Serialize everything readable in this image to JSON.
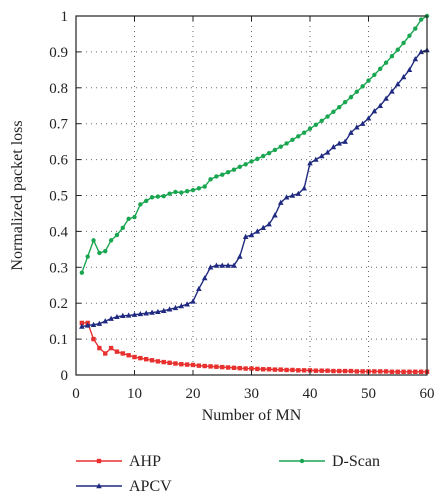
{
  "chart_data": {
    "type": "line",
    "xlabel": "Number of MN",
    "ylabel": "Normalized packet loss",
    "xlim": [
      0,
      60
    ],
    "ylim": [
      0,
      1
    ],
    "x_ticks": [
      0,
      10,
      20,
      30,
      40,
      50,
      60
    ],
    "y_ticks": [
      0,
      0.1,
      0.2,
      0.3,
      0.4,
      0.5,
      0.6,
      0.7,
      0.8,
      0.9,
      1
    ],
    "y_tick_labels": [
      "0",
      "0.1",
      "0.2",
      "0.3",
      "0.4",
      "0.5",
      "0.6",
      "0.7",
      "0.8",
      "0.9",
      "1"
    ],
    "grid": "dotted",
    "legend_placement": "below",
    "x": [
      1,
      2,
      3,
      4,
      5,
      6,
      7,
      8,
      9,
      10,
      11,
      12,
      13,
      14,
      15,
      16,
      17,
      18,
      19,
      20,
      21,
      22,
      23,
      24,
      25,
      26,
      27,
      28,
      29,
      30,
      31,
      32,
      33,
      34,
      35,
      36,
      37,
      38,
      39,
      40,
      41,
      42,
      43,
      44,
      45,
      46,
      47,
      48,
      49,
      50,
      51,
      52,
      53,
      54,
      55,
      56,
      57,
      58,
      59,
      60
    ],
    "series": [
      {
        "name": "AHP",
        "color": "#e8312f",
        "marker": "square",
        "values": [
          0.145,
          0.145,
          0.1,
          0.075,
          0.06,
          0.075,
          0.065,
          0.06,
          0.055,
          0.05,
          0.047,
          0.044,
          0.041,
          0.038,
          0.036,
          0.034,
          0.032,
          0.03,
          0.029,
          0.028,
          0.026,
          0.025,
          0.024,
          0.023,
          0.022,
          0.021,
          0.02,
          0.019,
          0.018,
          0.018,
          0.017,
          0.016,
          0.016,
          0.015,
          0.015,
          0.014,
          0.014,
          0.013,
          0.013,
          0.013,
          0.012,
          0.012,
          0.012,
          0.011,
          0.011,
          0.011,
          0.011,
          0.01,
          0.01,
          0.01,
          0.01,
          0.01,
          0.01,
          0.009,
          0.009,
          0.009,
          0.009,
          0.009,
          0.009,
          0.009
        ]
      },
      {
        "name": "APCV",
        "color": "#1f2a80",
        "marker": "triangle",
        "values": [
          0.135,
          0.138,
          0.14,
          0.143,
          0.15,
          0.157,
          0.162,
          0.165,
          0.166,
          0.168,
          0.17,
          0.172,
          0.174,
          0.176,
          0.179,
          0.183,
          0.187,
          0.192,
          0.197,
          0.205,
          0.24,
          0.27,
          0.3,
          0.305,
          0.305,
          0.305,
          0.305,
          0.33,
          0.385,
          0.39,
          0.4,
          0.41,
          0.42,
          0.445,
          0.48,
          0.495,
          0.5,
          0.505,
          0.52,
          0.59,
          0.6,
          0.61,
          0.62,
          0.635,
          0.645,
          0.65,
          0.675,
          0.69,
          0.7,
          0.715,
          0.735,
          0.75,
          0.77,
          0.79,
          0.81,
          0.83,
          0.85,
          0.88,
          0.9,
          0.905
        ]
      },
      {
        "name": "D-Scan",
        "color": "#1aa650",
        "marker": "circle",
        "values": [
          0.285,
          0.33,
          0.375,
          0.34,
          0.345,
          0.375,
          0.39,
          0.41,
          0.435,
          0.44,
          0.475,
          0.485,
          0.495,
          0.497,
          0.498,
          0.505,
          0.51,
          0.508,
          0.512,
          0.515,
          0.52,
          0.525,
          0.545,
          0.553,
          0.558,
          0.565,
          0.572,
          0.58,
          0.587,
          0.595,
          0.602,
          0.61,
          0.618,
          0.627,
          0.636,
          0.645,
          0.655,
          0.665,
          0.675,
          0.686,
          0.697,
          0.708,
          0.72,
          0.733,
          0.746,
          0.76,
          0.774,
          0.789,
          0.804,
          0.82,
          0.836,
          0.853,
          0.87,
          0.888,
          0.906,
          0.925,
          0.945,
          0.965,
          0.99,
          1.0
        ]
      }
    ]
  }
}
